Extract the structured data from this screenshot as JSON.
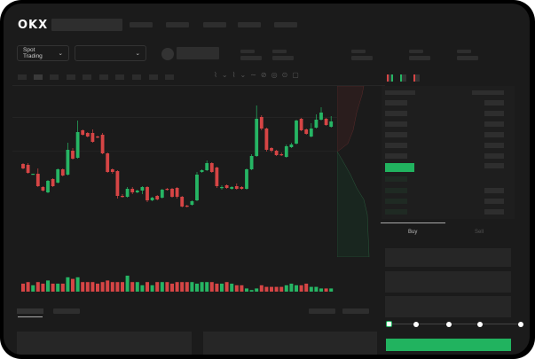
{
  "header": {
    "logo": "OKX"
  },
  "toolbar": {
    "market_select": "Spot Trading",
    "chevron": "⌄"
  },
  "trade": {
    "buy_tab": "Buy",
    "sell_tab": "Sell",
    "slider_value": 0
  },
  "colors": {
    "up": "#26b564",
    "down": "#d64545",
    "accent": "#21b35f",
    "bg": "#1b1b1b"
  },
  "chart_data": {
    "type": "candlestick",
    "candles": [
      [
        119,
        114,
        120,
        113
      ],
      [
        118,
        109,
        120,
        108
      ],
      [
        107,
        108,
        108,
        107
      ],
      [
        108,
        94,
        114,
        93
      ],
      [
        93,
        89,
        94,
        88
      ],
      [
        87,
        100,
        101,
        86
      ],
      [
        102,
        94,
        103,
        93
      ],
      [
        98,
        113,
        114,
        97
      ],
      [
        113,
        106,
        114,
        105
      ],
      [
        107,
        135,
        143,
        106
      ],
      [
        134,
        125,
        137,
        124
      ],
      [
        126,
        155,
        168,
        125
      ],
      [
        157,
        152,
        158,
        151
      ],
      [
        154,
        150,
        155,
        149
      ],
      [
        154,
        144,
        158,
        143
      ],
      [
        150,
        149,
        151,
        148
      ],
      [
        152,
        131,
        154,
        130
      ],
      [
        131,
        110,
        132,
        109
      ],
      [
        113,
        110,
        114,
        108
      ],
      [
        111,
        83,
        112,
        80
      ],
      [
        83,
        82,
        85,
        81
      ],
      [
        82,
        91,
        93,
        81
      ],
      [
        91,
        87,
        93,
        85
      ],
      [
        87,
        89,
        90,
        86
      ],
      [
        89,
        93,
        94,
        85
      ],
      [
        93,
        78,
        94,
        76
      ],
      [
        78,
        81,
        82,
        77
      ],
      [
        83,
        79,
        84,
        78
      ],
      [
        81,
        90,
        91,
        80
      ],
      [
        91,
        90,
        92,
        89
      ],
      [
        91,
        82,
        92,
        81
      ],
      [
        92,
        82,
        93,
        80
      ],
      [
        82,
        71,
        83,
        70
      ],
      [
        72,
        71,
        73,
        70
      ],
      [
        73,
        77,
        78,
        72
      ],
      [
        78,
        107,
        110,
        77
      ],
      [
        110,
        112,
        113,
        109
      ],
      [
        112,
        120,
        123,
        111
      ],
      [
        120,
        110,
        121,
        109
      ],
      [
        115,
        94,
        116,
        92
      ],
      [
        92,
        93,
        95,
        90
      ],
      [
        95,
        92,
        96,
        91
      ],
      [
        91,
        93,
        94,
        90
      ],
      [
        94,
        91,
        97,
        90
      ],
      [
        93,
        91,
        94,
        90
      ],
      [
        91,
        113,
        114,
        90
      ],
      [
        113,
        128,
        130,
        112
      ],
      [
        128,
        170,
        185,
        127
      ],
      [
        172,
        159,
        174,
        157
      ],
      [
        159,
        135,
        160,
        133
      ],
      [
        137,
        134,
        138,
        132
      ],
      [
        134,
        129,
        135,
        128
      ],
      [
        130,
        129,
        132,
        128
      ],
      [
        127,
        139,
        141,
        126
      ],
      [
        138,
        141,
        143,
        137
      ],
      [
        142,
        168,
        169,
        141
      ],
      [
        170,
        157,
        171,
        156
      ],
      [
        158,
        153,
        159,
        152
      ],
      [
        150,
        159,
        165,
        149
      ],
      [
        160,
        169,
        175,
        159
      ],
      [
        169,
        177,
        183,
        168
      ],
      [
        170,
        163,
        171,
        162
      ],
      [
        161,
        167,
        173,
        160
      ]
    ],
    "volume": [
      5,
      6,
      4,
      6,
      5,
      7,
      5,
      5,
      5,
      9,
      8,
      9,
      6,
      6,
      6,
      5,
      6,
      7,
      6,
      6,
      6,
      10,
      6,
      6,
      4,
      6,
      4,
      6,
      6,
      6,
      5,
      6,
      6,
      6,
      6,
      5,
      6,
      6,
      6,
      5,
      5,
      6,
      5,
      4,
      4,
      2,
      1,
      2,
      4,
      3,
      3,
      3,
      3,
      4,
      5,
      4,
      4,
      5,
      3,
      3,
      2,
      2,
      2
    ]
  }
}
